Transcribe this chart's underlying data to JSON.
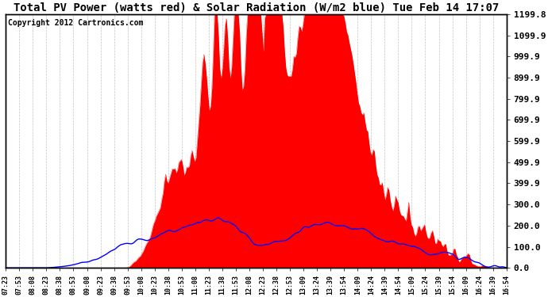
{
  "title": "Total PV Power (watts red) & Solar Radiation (W/m2 blue) Tue Feb 14 17:07",
  "copyright": "Copyright 2012 Cartronics.com",
  "yticks": [
    0.0,
    100.0,
    200.0,
    300.0,
    399.9,
    499.9,
    599.9,
    699.9,
    799.9,
    899.9,
    999.9,
    1099.9,
    1199.8
  ],
  "ymax": 1199.8,
  "ymin": 0.0,
  "bg_color": "#ffffff",
  "plot_bg_color": "#ffffff",
  "grid_color": "#aaaaaa",
  "red_color": "#ff0000",
  "blue_color": "#0000ff",
  "title_fontsize": 10,
  "tick_fontsize": 8,
  "copyright_fontsize": 7,
  "xtick_labels": [
    "07:23",
    "07:53",
    "08:08",
    "08:23",
    "08:38",
    "08:53",
    "09:08",
    "09:23",
    "09:38",
    "09:53",
    "10:08",
    "10:23",
    "10:38",
    "10:53",
    "11:08",
    "11:23",
    "11:38",
    "11:53",
    "12:08",
    "12:23",
    "12:38",
    "12:53",
    "13:09",
    "13:24",
    "13:39",
    "13:54",
    "14:09",
    "14:24",
    "14:39",
    "14:54",
    "15:09",
    "15:24",
    "15:39",
    "15:54",
    "16:09",
    "16:24",
    "16:39",
    "16:54"
  ]
}
